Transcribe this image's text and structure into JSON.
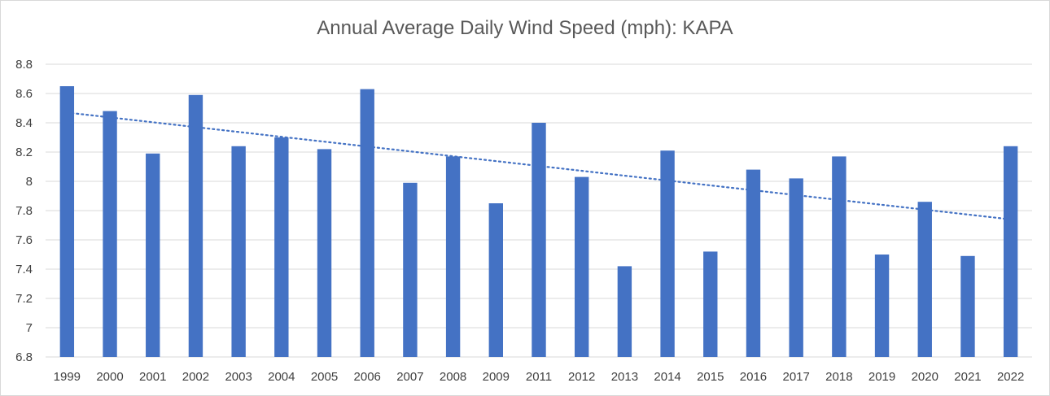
{
  "chart_data": {
    "type": "bar",
    "title": "Annual Average Daily Wind Speed (mph): KAPA",
    "xlabel": "",
    "ylabel": "",
    "ylim": [
      6.8,
      8.8
    ],
    "yticks": [
      "6.8",
      "7",
      "7.2",
      "7.4",
      "7.6",
      "7.8",
      "8",
      "8.2",
      "8.4",
      "8.6",
      "8.8"
    ],
    "categories": [
      "1999",
      "2000",
      "2001",
      "2002",
      "2003",
      "2004",
      "2005",
      "2006",
      "2007",
      "2008",
      "2009",
      "2011",
      "2012",
      "2013",
      "2014",
      "2015",
      "2016",
      "2017",
      "2018",
      "2019",
      "2020",
      "2021",
      "2022"
    ],
    "values": [
      8.65,
      8.48,
      8.19,
      8.59,
      8.24,
      8.3,
      8.22,
      8.63,
      7.99,
      8.17,
      7.85,
      8.4,
      8.03,
      7.42,
      8.21,
      7.52,
      8.08,
      8.02,
      8.17,
      7.5,
      7.86,
      7.49,
      8.24
    ],
    "trendline": {
      "type": "linear",
      "start": 8.47,
      "end": 7.74
    },
    "grid": true,
    "legend": "none",
    "colors": {
      "bar": "#4472c4",
      "trendline": "#4472c4",
      "grid": "#d9d9d9",
      "axis_text": "#404040",
      "title": "#595959"
    }
  }
}
